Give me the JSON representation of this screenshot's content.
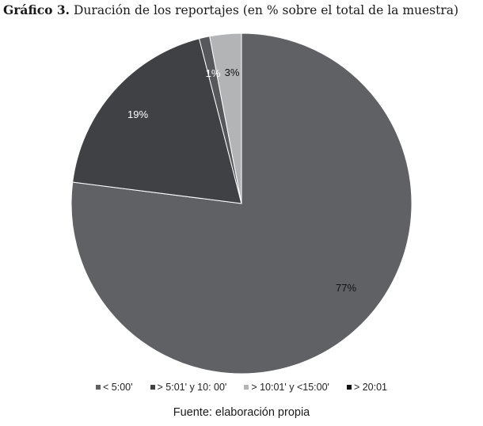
{
  "figure": {
    "title_bold": "Gráfico 3.",
    "title_rest": " Duración de los reportajes (en % sobre el total de la muestra)",
    "source": "Fuente: elaboración propia"
  },
  "chart_data": {
    "type": "pie",
    "title": "Gráfico 3. Duración de los reportajes (en % sobre el total de la muestra)",
    "start_angle_deg": 0,
    "direction": "clockwise",
    "legend_position": "bottom",
    "slices": [
      {
        "label": "< 5:00'",
        "value": 77,
        "display": "77%",
        "color": "#5f6165",
        "label_color": "#111111"
      },
      {
        "label": "> 5:01' y 10: 00'",
        "value": 19,
        "display": "19%",
        "color": "#3f4144",
        "label_color": "#ffffff"
      },
      {
        "label": "> 10:01' y <15:00'",
        "value": 1,
        "display": "1%",
        "color": "#56585c",
        "label_color": "#ffffff"
      },
      {
        "label": "> 20:01",
        "value": 3,
        "display": "3%",
        "color": "#b3b4b6",
        "label_color": "#111111"
      }
    ],
    "legend": [
      {
        "label": "< 5:00'",
        "color": "#5f6165"
      },
      {
        "label": "> 5:01' y 10: 00'",
        "color": "#3f4144"
      },
      {
        "label": "> 10:01' y <15:00'",
        "color": "#b3b4b6"
      },
      {
        "label": "> 20:01",
        "color": "#111111"
      }
    ]
  }
}
